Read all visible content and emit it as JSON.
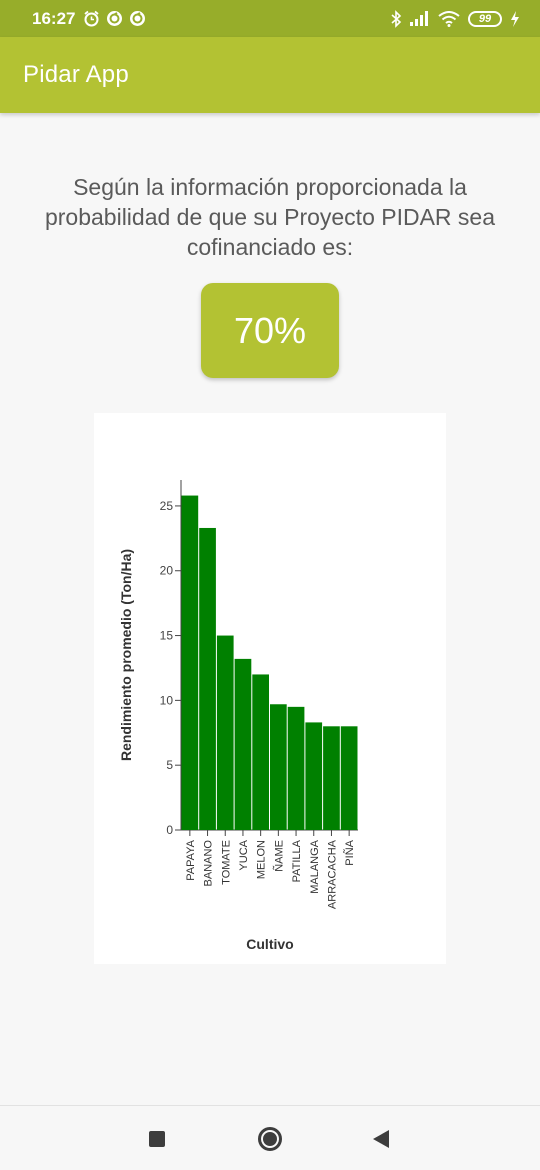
{
  "status_bar": {
    "time": "16:27",
    "battery": "99",
    "icons": [
      "alarm-icon",
      "sync-icon",
      "sync-icon",
      "bluetooth-icon",
      "signal-icon",
      "wifi-icon",
      "battery-icon",
      "charging-icon"
    ]
  },
  "app_bar": {
    "title": "Pidar App"
  },
  "message": "Según la información proporcionada la probabilidad de que su Proyecto PIDAR sea cofinanciado es:",
  "probability": "70%",
  "colors": {
    "app_bar": "#b3c233",
    "status_bar": "#97ad2a",
    "bars": "#008000"
  },
  "chart_data": {
    "type": "bar",
    "categories": [
      "PAPAYA",
      "BANANO",
      "TOMATE",
      "YUCA",
      "MELON",
      "ÑAME",
      "PATILLA",
      "MALANGA",
      "ARRACACHA",
      "PIÑA"
    ],
    "values": [
      25.8,
      23.3,
      15.0,
      13.2,
      12.0,
      9.7,
      9.5,
      8.3,
      8.0,
      8.0
    ],
    "xlabel": "Cultivo",
    "ylabel": "Rendimiento promedio (Ton/Ha)",
    "ylim": [
      0,
      27
    ],
    "yticks": [
      0,
      5,
      10,
      15,
      20,
      25
    ],
    "grid": false,
    "legend": "none"
  },
  "nav_bar": {
    "icons": [
      "recent-apps-icon",
      "home-icon",
      "back-icon"
    ]
  }
}
